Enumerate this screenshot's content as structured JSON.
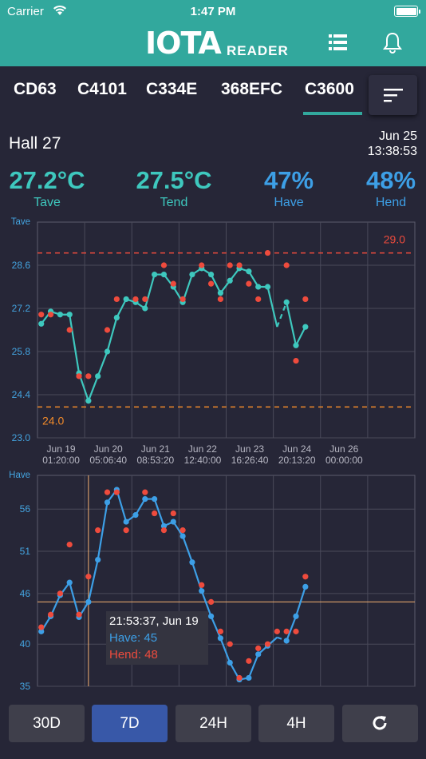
{
  "status_bar": {
    "carrier": "Carrier",
    "time": "1:47 PM"
  },
  "header": {
    "logo": "IOTA",
    "logo_sub": "READER",
    "icons": [
      "list-icon",
      "bell-icon"
    ]
  },
  "tabs": [
    {
      "label": "CD63",
      "selected": false
    },
    {
      "label": "C4101",
      "selected": false
    },
    {
      "label": "C334E",
      "selected": false
    },
    {
      "label": "368EFC",
      "selected": false
    },
    {
      "label": "C3600",
      "selected": true
    }
  ],
  "device": {
    "location": "Hall 27",
    "date": "Jun 25",
    "time": "13:38:53"
  },
  "metrics": [
    {
      "value": "27.2°C",
      "label": "Tave",
      "color": "#3ec8be"
    },
    {
      "value": "27.5°C",
      "label": "Tend",
      "color": "#3ec8be"
    },
    {
      "value": "47%",
      "label": "Have",
      "color": "#3d9fe6"
    },
    {
      "value": "48%",
      "label": "Hend",
      "color": "#3d9fe6"
    }
  ],
  "chart_data": [
    {
      "type": "line",
      "ylabel": "Tave",
      "ylim": [
        23.0,
        30.0
      ],
      "yticks": [
        "23.0",
        "24.4",
        "25.8",
        "27.2",
        "28.6"
      ],
      "xlim": [
        0,
        8
      ],
      "xticks": [
        {
          "x": 0.5,
          "line1": "Jun 19",
          "line2": "01:20:00"
        },
        {
          "x": 1.5,
          "line1": "Jun 20",
          "line2": "05:06:40"
        },
        {
          "x": 2.5,
          "line1": "Jun 21",
          "line2": "08:53:20"
        },
        {
          "x": 3.5,
          "line1": "Jun 22",
          "line2": "12:40:00"
        },
        {
          "x": 4.5,
          "line1": "Jun 23",
          "line2": "16:26:40"
        },
        {
          "x": 5.5,
          "line1": "Jun 24",
          "line2": "20:13:20"
        },
        {
          "x": 6.5,
          "line1": "Jun 26",
          "line2": "00:00:00"
        }
      ],
      "thresholds": [
        {
          "value": 29.0,
          "label": "29.0",
          "color": "#ee4b3d"
        },
        {
          "value": 24.0,
          "label": "24.0",
          "color": "#f18a2a"
        }
      ],
      "series": [
        {
          "name": "Tave",
          "color": "#3ec8be",
          "x": [
            0.08,
            0.28,
            0.48,
            0.68,
            0.88,
            1.08,
            1.28,
            1.48,
            1.68,
            1.88,
            2.08,
            2.28,
            2.48,
            2.68,
            2.88,
            3.08,
            3.28,
            3.48,
            3.68,
            3.88,
            4.08,
            4.28,
            4.48,
            4.68,
            4.88,
            5.08,
            5.28,
            5.48,
            5.68
          ],
          "values": [
            26.7,
            27.1,
            27.0,
            27.0,
            25.1,
            24.2,
            25.0,
            25.8,
            26.9,
            27.5,
            27.4,
            27.2,
            28.3,
            28.3,
            27.9,
            27.4,
            28.3,
            28.5,
            28.3,
            27.7,
            28.1,
            28.5,
            28.4,
            27.9,
            27.9,
            26.6,
            27.4,
            26.0,
            26.6
          ],
          "dashed_from_index": 26
        },
        {
          "name": "Tend",
          "color": "#ee4b3d",
          "style": "dots",
          "x": [
            0.08,
            0.28,
            0.68,
            0.88,
            1.08,
            1.48,
            1.68,
            2.08,
            2.28,
            2.68,
            2.88,
            3.08,
            3.48,
            3.68,
            3.88,
            4.08,
            4.28,
            4.48,
            4.68,
            4.88,
            5.28,
            5.48,
            5.68
          ],
          "values": [
            27.0,
            27.0,
            26.5,
            25.0,
            25.0,
            26.5,
            27.5,
            27.5,
            27.5,
            28.6,
            28.0,
            27.5,
            28.6,
            28.0,
            27.5,
            28.6,
            28.6,
            28.0,
            27.5,
            29.0,
            28.6,
            25.5,
            27.5
          ]
        }
      ]
    },
    {
      "type": "line",
      "ylabel": "Have",
      "ylim": [
        35,
        60
      ],
      "yticks": [
        "35",
        "40",
        "46",
        "51",
        "56"
      ],
      "xlim": [
        0,
        8
      ],
      "series": [
        {
          "name": "Have",
          "color": "#3d9fe6",
          "x": [
            0.08,
            0.28,
            0.48,
            0.68,
            0.88,
            1.08,
            1.28,
            1.48,
            1.68,
            1.88,
            2.08,
            2.28,
            2.48,
            2.68,
            2.88,
            3.08,
            3.28,
            3.48,
            3.68,
            3.88,
            4.08,
            4.28,
            4.48,
            4.68,
            4.88,
            5.08,
            5.28,
            5.48,
            5.68
          ],
          "values": [
            41.5,
            43.3,
            45.8,
            47.3,
            43.2,
            45.0,
            50.0,
            56.8,
            58.3,
            54.5,
            55.3,
            57.2,
            57.2,
            54.0,
            54.5,
            52.8,
            49.7,
            46.3,
            43.3,
            40.7,
            37.8,
            35.8,
            36.0,
            38.8,
            39.8,
            40.8,
            40.4,
            43.3,
            46.8
          ],
          "dashed_from_index": 26
        },
        {
          "name": "Hend",
          "color": "#ee4b3d",
          "style": "dots",
          "x": [
            0.08,
            0.28,
            0.48,
            0.68,
            0.88,
            1.08,
            1.28,
            1.48,
            1.68,
            1.88,
            2.28,
            2.48,
            2.68,
            2.88,
            3.08,
            3.48,
            3.68,
            3.88,
            4.08,
            4.28,
            4.48,
            4.68,
            4.88,
            5.08,
            5.28,
            5.48,
            5.68
          ],
          "values": [
            42.0,
            43.5,
            46.0,
            51.8,
            43.5,
            48.0,
            53.5,
            58.0,
            58.0,
            53.5,
            58.0,
            55.5,
            53.5,
            55.5,
            53.5,
            47.0,
            45.0,
            41.5,
            40.0,
            36.0,
            38.0,
            39.5,
            40.0,
            41.5,
            41.5,
            41.5,
            48.0
          ]
        }
      ],
      "crosshair": {
        "x": 1.08,
        "y": 45.0
      }
    }
  ],
  "tooltip": {
    "header": "21:53:37, Jun 19",
    "have": "Have: 45",
    "hend": "Hend: 48"
  },
  "range_buttons": [
    {
      "label": "30D",
      "active": false
    },
    {
      "label": "7D",
      "active": true
    },
    {
      "label": "24H",
      "active": false
    },
    {
      "label": "4H",
      "active": false
    }
  ]
}
